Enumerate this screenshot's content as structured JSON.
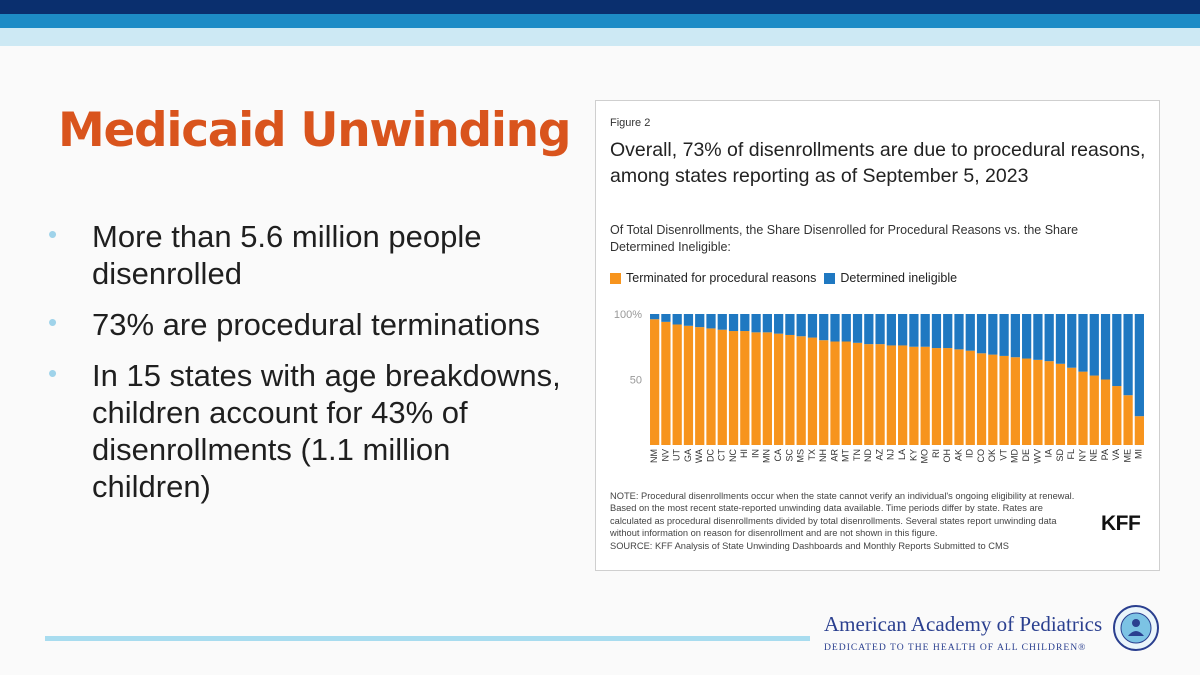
{
  "slide": {
    "title": "Medicaid Unwinding",
    "bullets": [
      "More than 5.6 million people disenrolled",
      "73% are procedural terminations",
      "In 15 states with age breakdowns, children account for 43% of disenrollments (1.1 million children)"
    ],
    "bullet_symbol": "•"
  },
  "figure": {
    "label": "Figure 2",
    "title": "Overall, 73% of disenrollments are due to procedural reasons, among states reporting as of September 5, 2023",
    "subtitle": "Of Total Disenrollments, the Share Disenrolled for Procedural Reasons vs. the Share Determined Ineligible:",
    "note": "NOTE: Procedural disenrollments occur when the state cannot verify an individual's ongoing eligibility at renewal. Based on the most recent state-reported unwinding data available. Time periods differ by state. Rates are calculated as procedural disenrollments divided by total disenrollments. Several states report unwinding data without information on reason for disenrollment and are not shown in this figure.",
    "source": "SOURCE: KFF Analysis of State Unwinding Dashboards and Monthly Reports Submitted to CMS",
    "brand": "KFF"
  },
  "chart_data": {
    "type": "bar",
    "stacked": true,
    "categories": [
      "NM",
      "NV",
      "UT",
      "GA",
      "WA",
      "DC",
      "CT",
      "NC",
      "HI",
      "IN",
      "MN",
      "CA",
      "SC",
      "MS",
      "TX",
      "NH",
      "AR",
      "MT",
      "TN",
      "ND",
      "AZ",
      "NJ",
      "LA",
      "KY",
      "MO",
      "RI",
      "OH",
      "AK",
      "ID",
      "CO",
      "OK",
      "VT",
      "MD",
      "DE",
      "WV",
      "IA",
      "SD",
      "FL",
      "NY",
      "NE",
      "PA",
      "VA",
      "ME",
      "MI"
    ],
    "series": [
      {
        "name": "Terminated for procedural reasons",
        "color": "#f7941d",
        "values": [
          96,
          94,
          92,
          91,
          90,
          89,
          88,
          87,
          87,
          86,
          86,
          85,
          84,
          83,
          82,
          80,
          79,
          79,
          78,
          77,
          77,
          76,
          76,
          75,
          75,
          74,
          74,
          73,
          72,
          70,
          69,
          68,
          67,
          66,
          65,
          64,
          62,
          59,
          56,
          53,
          50,
          45,
          38,
          22
        ]
      },
      {
        "name": "Determined ineligible",
        "color": "#1f78c1",
        "values": [
          4,
          6,
          8,
          9,
          10,
          11,
          12,
          13,
          13,
          14,
          14,
          15,
          16,
          17,
          18,
          20,
          21,
          21,
          22,
          23,
          23,
          24,
          24,
          25,
          25,
          26,
          26,
          27,
          28,
          30,
          31,
          32,
          33,
          34,
          35,
          36,
          38,
          41,
          44,
          47,
          50,
          55,
          62,
          78
        ]
      }
    ],
    "y_ticks": [
      {
        "value": 100,
        "label": "100%"
      },
      {
        "value": 50,
        "label": "50"
      }
    ],
    "ylim": [
      0,
      100
    ],
    "legend_position": "top-left",
    "grid": false
  },
  "footer": {
    "org_name": "American Academy of Pediatrics",
    "tagline": "DEDICATED TO THE HEALTH OF ALL CHILDREN®"
  },
  "colors": {
    "title": "#d9541d",
    "navy": "#0a2f6e",
    "blue": "#1d8cc6",
    "light_blue": "#cde9f4",
    "org_blue": "#2a3f8f"
  }
}
